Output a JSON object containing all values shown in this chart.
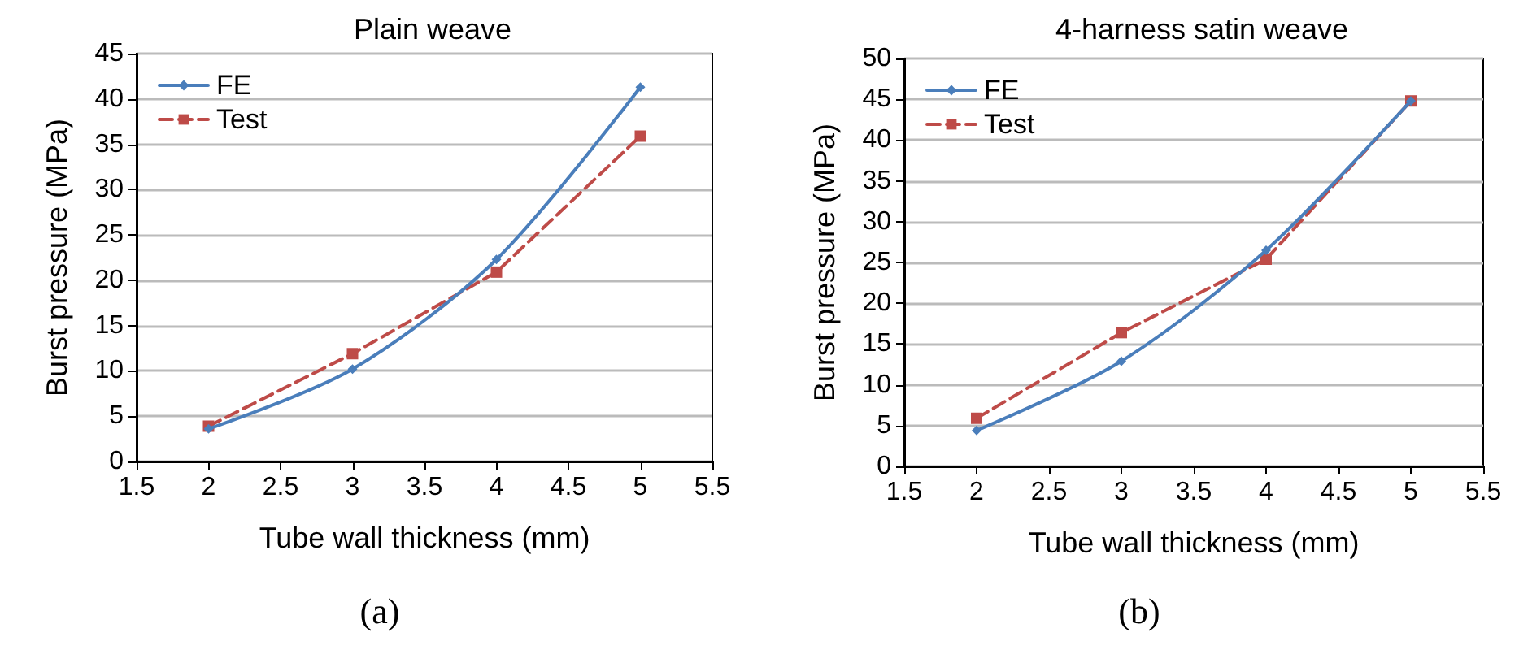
{
  "chart_data": [
    {
      "type": "line",
      "title": "Plain weave",
      "xlabel": "Tube wall thickness (mm)",
      "ylabel": "Burst pressure (MPa)",
      "annotations": [
        "(a)"
      ],
      "x": [
        2,
        3,
        4,
        5
      ],
      "series": [
        {
          "name": "FE",
          "color": "#4a7ebb",
          "values": [
            3.6,
            10.2,
            22.3,
            41.3
          ],
          "marker": "diamond",
          "line_style": "solid"
        },
        {
          "name": "Test",
          "color": "#be4b48",
          "values": [
            3.9,
            11.9,
            20.9,
            35.9
          ],
          "marker": "square",
          "line_style": "dashed"
        }
      ],
      "xlim": [
        1.5,
        5.5
      ],
      "xticks": [
        1.5,
        2,
        2.5,
        3,
        3.5,
        4,
        4.5,
        5,
        5.5
      ],
      "ylim": [
        0,
        45
      ],
      "yticks": [
        0,
        5,
        10,
        15,
        20,
        25,
        30,
        35,
        40,
        45
      ],
      "grid": "y",
      "legend": "top left"
    },
    {
      "type": "line",
      "title": "4-harness satin weave",
      "xlabel": "Tube wall thickness (mm)",
      "ylabel": "Burst pressure (MPa)",
      "annotations": [
        "(b)"
      ],
      "x": [
        2,
        3,
        4,
        5
      ],
      "series": [
        {
          "name": "FE",
          "color": "#4a7ebb",
          "values": [
            4.4,
            12.9,
            26.5,
            44.8
          ],
          "marker": "diamond",
          "line_style": "solid"
        },
        {
          "name": "Test",
          "color": "#be4b48",
          "values": [
            5.9,
            16.4,
            25.4,
            44.8
          ],
          "marker": "square",
          "line_style": "dashed"
        }
      ],
      "xlim": [
        1.5,
        5.5
      ],
      "xticks": [
        1.5,
        2,
        2.5,
        3,
        3.5,
        4,
        4.5,
        5,
        5.5
      ],
      "ylim": [
        0,
        50
      ],
      "yticks": [
        0,
        5,
        10,
        15,
        20,
        25,
        30,
        35,
        40,
        45,
        50
      ],
      "grid": "y",
      "legend": "top left"
    }
  ]
}
